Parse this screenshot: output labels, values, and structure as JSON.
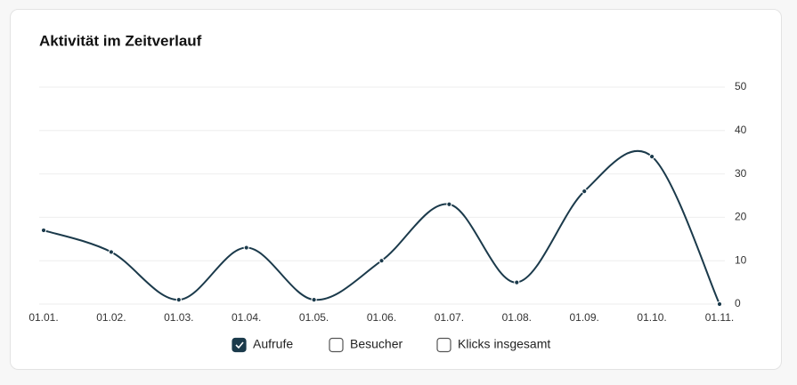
{
  "chart_data": {
    "type": "line",
    "title": "Aktivität im Zeitverlauf",
    "categories": [
      "01.01.",
      "01.02.",
      "01.03.",
      "01.04.",
      "01.05.",
      "01.06.",
      "01.07.",
      "01.08.",
      "01.09.",
      "01.10.",
      "01.11."
    ],
    "series": [
      {
        "name": "Aufrufe",
        "color": "#1b3a4b",
        "values": [
          17,
          12,
          1,
          13,
          1,
          10,
          23,
          5,
          26,
          34,
          0
        ]
      }
    ],
    "legend_items": [
      {
        "name": "Aufrufe",
        "checked": true
      },
      {
        "name": "Besucher",
        "checked": false
      },
      {
        "name": "Klicks insgesamt",
        "checked": false
      }
    ],
    "ylim": [
      0,
      50
    ],
    "yticks": [
      0,
      10,
      20,
      30,
      40,
      50
    ],
    "grid": true,
    "smooth": true
  }
}
